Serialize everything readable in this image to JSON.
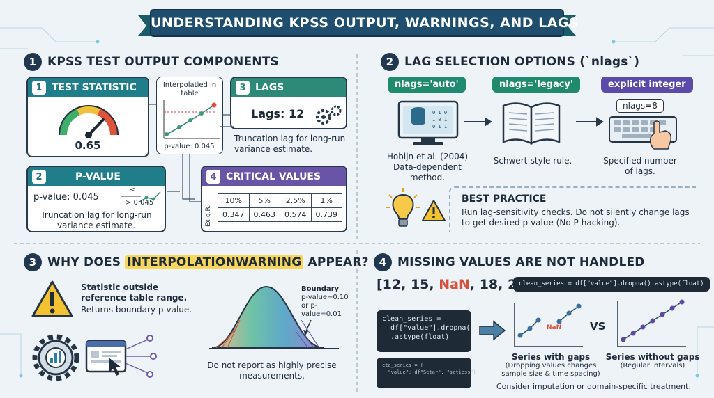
{
  "title": "UNDERSTANDING KPSS OUTPUT, WARNINGS, AND LAGS",
  "section1": {
    "num": "1",
    "title": "KPSS TEST OUTPUT COMPONENTS",
    "test_statistic": {
      "num": "1",
      "label": "TEST STATISTIC",
      "value": "0.65"
    },
    "interp_chart": {
      "label": "Interpolatied in table",
      "pvalue": "p-value: 0.045"
    },
    "lags": {
      "num": "3",
      "label": "LAGS",
      "value": "Lags: 12",
      "note": "Truncation lag for long-run variance estimate."
    },
    "pvalue": {
      "num": "2",
      "label": "P-VALUE",
      "value": "p-value: 0.045",
      "small1": "<",
      "small2": "> 0.045",
      "note": "Truncation lag for long-run variance estimate."
    },
    "critical": {
      "num": "4",
      "label": "CRITICAL VALUES",
      "row_label": "Ex.g.R.",
      "headers": [
        "10%",
        "5%",
        "2.5%",
        "1%"
      ],
      "values": [
        "0.347",
        "0.463",
        "0.574",
        "0.739"
      ]
    }
  },
  "section2": {
    "num": "2",
    "title": "LAG SELECTION OPTIONS (`nlags`)",
    "options": [
      {
        "label": "nlags='auto'",
        "desc": "Hobijn et al. (2004) Data-dependent method.",
        "color": "#1f8a6e"
      },
      {
        "label": "nlags='legacy'",
        "desc": "Schwert-style rule.",
        "color": "#1f8a6e"
      },
      {
        "label": "explicit integer",
        "desc": "Specified number of lags.",
        "color": "#5b4aa8",
        "badge": "nlags=8"
      }
    ],
    "best_practice": {
      "title": "BEST PRACTICE",
      "text": "Run lag-sensitivity checks. Do not silently change lags to get desired p-value (No P-hacking)."
    }
  },
  "section3": {
    "num": "3",
    "title_pre": "WHY DOES ",
    "title_highlight": "INTERPOLATIONWARNING",
    "title_post": " APPEAR?",
    "warning_bold": "Statistic outside reference table range.",
    "warning_text": "Returns boundary p-value.",
    "boundary_title": "Boundary",
    "boundary_text": "p-value=0.10 or p-value=0.01",
    "note": "Do not report as highly precise measurements."
  },
  "section4": {
    "num": "4",
    "title": "MISSING VALUES ARE NOT HANDLED",
    "array_open": "[12, 15, ",
    "array_nan": "NaN",
    "array_close": ", 18, 20]",
    "code_top": "clean_series = df[\"value\"].dropna().astype(float)",
    "code_left": "clean_series =\n  df[\"value\"].dropna()\n  .astype(float)",
    "code_small": "cta_series = {\n  \"value\": df\"Setar\", \"sctiess\"}",
    "nan_label": "NaN",
    "vs": "VS",
    "gaps_title": "Series with gaps",
    "gaps_sub": "(Dropping values changes sample size & time spacing)",
    "nogaps_title": "Series without gaps",
    "nogaps_sub": "(Regular intervals)",
    "consider": "Consider imputation or domain-specific treatment."
  }
}
